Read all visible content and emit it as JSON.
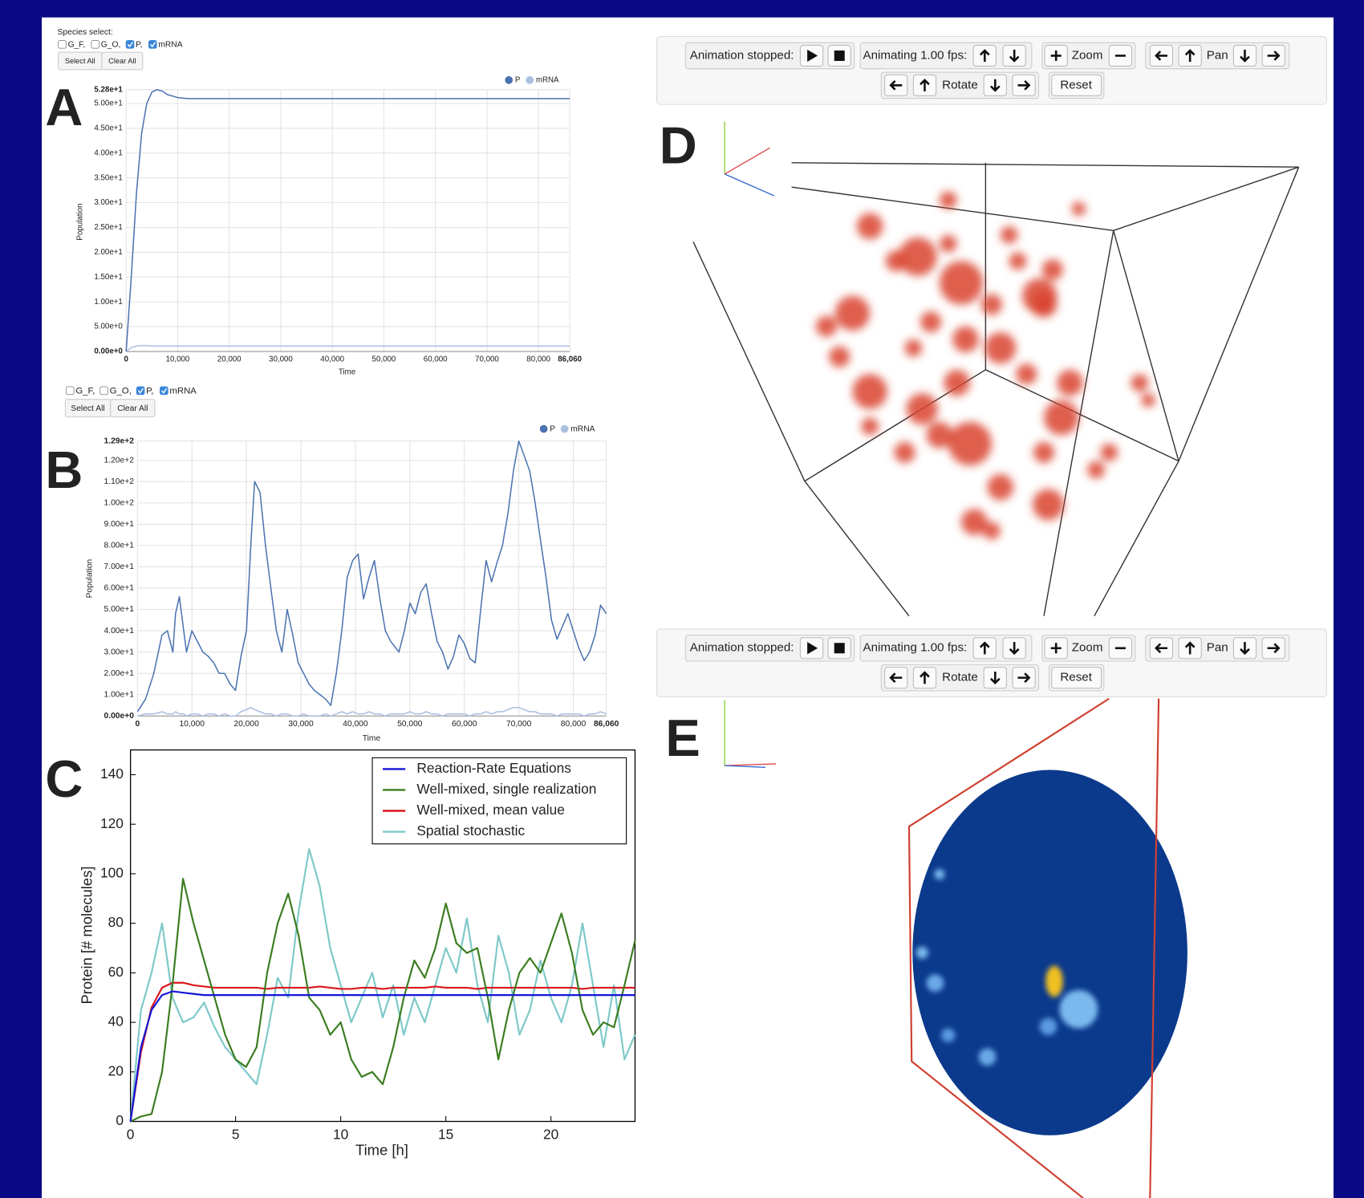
{
  "panel_labels": [
    "A",
    "B",
    "C",
    "D",
    "E"
  ],
  "species_select_a": {
    "title": "Species select:",
    "options": [
      "G_F,",
      "G_O,",
      "P,",
      "mRNA"
    ],
    "checked": [
      false,
      false,
      true,
      true
    ],
    "buttons": [
      "Select All",
      "Clear All"
    ]
  },
  "species_select_b": {
    "options": [
      "G_F,",
      "G_O,",
      "P,",
      "mRNA"
    ],
    "checked": [
      false,
      false,
      true,
      true
    ],
    "buttons": [
      "Select All",
      "Clear All"
    ]
  },
  "toolbars": [
    {
      "animation_status": "Animation stopped:",
      "animating": "Animating 1.00 fps:",
      "zoom": "Zoom",
      "pan": "Pan",
      "rotate": "Rotate",
      "reset": "Reset"
    },
    {
      "animation_status": "Animation stopped:",
      "animating": "Animating 1.00 fps:",
      "zoom": "Zoom",
      "pan": "Pan",
      "rotate": "Rotate",
      "reset": "Reset"
    }
  ],
  "chart_data": [
    {
      "type": "line",
      "xlabel": "Time",
      "ylabel": "Population",
      "grid": true,
      "legend": "top-right",
      "x": [
        0,
        1000,
        2000,
        3000,
        4000,
        5000,
        6000,
        7000,
        8000,
        10000,
        12000,
        15000,
        20000,
        30000,
        40000,
        50000,
        60000,
        70000,
        80000,
        86060
      ],
      "series": [
        {
          "name": "P",
          "color": "#4a72b0",
          "values": [
            0,
            15,
            32,
            44,
            50,
            52.3,
            52.8,
            52.5,
            51.8,
            51.2,
            51,
            51,
            51,
            51,
            51,
            51,
            51,
            51,
            51,
            51
          ]
        },
        {
          "name": "mRNA",
          "color": "#aabfe0",
          "values": [
            0,
            0.8,
            1.1,
            1.2,
            1.2,
            1.1,
            1.1,
            1.1,
            1.1,
            1.1,
            1.1,
            1.1,
            1.1,
            1.1,
            1.1,
            1.1,
            1.1,
            1.1,
            1.1,
            1.1
          ]
        }
      ],
      "xlim": [
        0,
        86060
      ],
      "xticks": [
        0,
        {
          "value": 10000,
          "label": "10,000"
        },
        {
          "value": 20000,
          "label": "20,000"
        },
        {
          "value": 30000,
          "label": "30,000"
        },
        {
          "value": 40000,
          "label": "40,000"
        },
        {
          "value": 50000,
          "label": "50,000"
        },
        {
          "value": 60000,
          "label": "60,000"
        },
        {
          "value": 70000,
          "label": "70,000"
        },
        {
          "value": 80000,
          "label": "80,000"
        },
        {
          "value": 86060,
          "label": "86,060"
        }
      ],
      "ylim": [
        0,
        52.8
      ],
      "yticks": [
        {
          "value": 0,
          "label": "0.00e+0"
        },
        {
          "value": 5,
          "label": "5.00e+0"
        },
        {
          "value": 10,
          "label": "1.00e+1"
        },
        {
          "value": 15,
          "label": "1.50e+1"
        },
        {
          "value": 20,
          "label": "2.00e+1"
        },
        {
          "value": 25,
          "label": "2.50e+1"
        },
        {
          "value": 30,
          "label": "3.00e+1"
        },
        {
          "value": 35,
          "label": "3.50e+1"
        },
        {
          "value": 40,
          "label": "4.00e+1"
        },
        {
          "value": 45,
          "label": "4.50e+1"
        },
        {
          "value": 50,
          "label": "5.00e+1"
        },
        {
          "value": 52.8,
          "label": "5.28e+1"
        }
      ]
    },
    {
      "type": "line",
      "xlabel": "Time",
      "ylabel": "Population",
      "grid": true,
      "legend": "top-right",
      "x": [
        0,
        1500,
        3000,
        4500,
        5500,
        6500,
        7000,
        7700,
        8500,
        9000,
        10000,
        11000,
        12000,
        13000,
        14000,
        15000,
        16000,
        17000,
        18000,
        19000,
        20000,
        20800,
        21500,
        22500,
        23500,
        24500,
        25500,
        26500,
        27500,
        28500,
        29500,
        30500,
        31500,
        32500,
        33500,
        34500,
        35500,
        36500,
        37500,
        38500,
        39500,
        40500,
        41500,
        42500,
        43500,
        44500,
        45500,
        46500,
        48000,
        49000,
        50000,
        51000,
        52000,
        53000,
        54000,
        55000,
        56000,
        57000,
        58000,
        59000,
        60000,
        61000,
        62000,
        63000,
        64000,
        65000,
        66000,
        67000,
        68000,
        69000,
        70000,
        71000,
        72000,
        73000,
        74000,
        75000,
        76000,
        77000,
        78000,
        79000,
        80000,
        81000,
        82000,
        83000,
        84000,
        85000,
        86060
      ],
      "series": [
        {
          "name": "P",
          "color": "#4a72b0",
          "values": [
            2,
            8,
            20,
            38,
            40,
            30,
            48,
            56,
            40,
            30,
            40,
            35,
            30,
            28,
            25,
            20,
            20,
            15,
            12,
            28,
            40,
            80,
            110,
            105,
            80,
            60,
            40,
            30,
            50,
            38,
            25,
            20,
            15,
            12,
            10,
            8,
            5,
            20,
            40,
            65,
            73,
            76,
            55,
            65,
            73,
            55,
            40,
            35,
            30,
            40,
            53,
            48,
            58,
            62,
            48,
            35,
            30,
            22,
            28,
            38,
            34,
            27,
            25,
            50,
            73,
            63,
            72,
            80,
            95,
            115,
            129,
            122,
            115,
            100,
            82,
            65,
            45,
            36,
            42,
            48,
            40,
            32,
            26,
            30,
            38,
            52,
            48
          ]
        },
        {
          "name": "mRNA",
          "color": "#aabfe0",
          "values": [
            0,
            1,
            1,
            2,
            1,
            1,
            2,
            1,
            1,
            0,
            1,
            1,
            0,
            1,
            1,
            0,
            1,
            0,
            0,
            2,
            3,
            4,
            3,
            2,
            1,
            1,
            0,
            1,
            1,
            0,
            0,
            1,
            0,
            0,
            0,
            1,
            0,
            1,
            2,
            1,
            2,
            1,
            1,
            2,
            1,
            1,
            0,
            1,
            1,
            1,
            2,
            1,
            1,
            2,
            1,
            1,
            0,
            1,
            1,
            1,
            1,
            0,
            1,
            1,
            2,
            1,
            2,
            2,
            3,
            4,
            4,
            3,
            2,
            2,
            1,
            1,
            1,
            0,
            1,
            1,
            1,
            1,
            0,
            1,
            1,
            2,
            1
          ]
        }
      ],
      "xlim": [
        0,
        86060
      ],
      "xticks": [
        0,
        {
          "value": 10000,
          "label": "10,000"
        },
        {
          "value": 20000,
          "label": "20,000"
        },
        {
          "value": 30000,
          "label": "30,000"
        },
        {
          "value": 40000,
          "label": "40,000"
        },
        {
          "value": 50000,
          "label": "50,000"
        },
        {
          "value": 60000,
          "label": "60,000"
        },
        {
          "value": 70000,
          "label": "70,000"
        },
        {
          "value": 80000,
          "label": "80,000"
        },
        {
          "value": 86060,
          "label": "86,060"
        }
      ],
      "ylim": [
        0,
        129
      ],
      "yticks": [
        {
          "value": 0,
          "label": "0.00e+0"
        },
        {
          "value": 10,
          "label": "1.00e+1"
        },
        {
          "value": 20,
          "label": "2.00e+1"
        },
        {
          "value": 30,
          "label": "3.00e+1"
        },
        {
          "value": 40,
          "label": "4.00e+1"
        },
        {
          "value": 50,
          "label": "5.00e+1"
        },
        {
          "value": 60,
          "label": "6.00e+1"
        },
        {
          "value": 70,
          "label": "7.00e+1"
        },
        {
          "value": 80,
          "label": "8.00e+1"
        },
        {
          "value": 90,
          "label": "9.00e+1"
        },
        {
          "value": 100,
          "label": "1.00e+2"
        },
        {
          "value": 110,
          "label": "1.10e+2"
        },
        {
          "value": 120,
          "label": "1.20e+2"
        },
        {
          "value": 129,
          "label": "1.29e+2"
        }
      ]
    },
    {
      "type": "line",
      "xlabel": "Time [h]",
      "ylabel": "Protein [# molecules]",
      "grid": false,
      "legend": "top-right",
      "x": [
        0,
        0.5,
        1,
        1.5,
        2,
        2.5,
        3,
        3.5,
        4,
        4.5,
        5,
        5.5,
        6,
        6.5,
        7,
        7.5,
        8,
        8.5,
        9,
        9.5,
        10,
        10.5,
        11,
        11.5,
        12,
        12.5,
        13,
        13.5,
        14,
        14.5,
        15,
        15.5,
        16,
        16.5,
        17,
        17.5,
        18,
        18.5,
        19,
        19.5,
        20,
        20.5,
        21,
        21.5,
        22,
        22.5,
        23,
        23.5,
        24
      ],
      "series": [
        {
          "name": "Reaction-Rate Equations",
          "color": "#1515d6",
          "values": [
            0,
            30,
            45,
            51,
            52.5,
            52,
            51.5,
            51,
            51,
            51,
            51,
            51,
            51,
            51,
            51,
            51,
            51,
            51,
            51,
            51,
            51,
            51,
            51,
            51,
            51,
            51,
            51,
            51,
            51,
            51,
            51,
            51,
            51,
            51,
            51,
            51,
            51,
            51,
            51,
            51,
            51,
            51,
            51,
            51,
            51,
            51,
            51,
            51,
            51
          ]
        },
        {
          "name": "Well-mixed, single realization",
          "color": "#3a7d1f",
          "values": [
            0,
            2,
            3,
            20,
            55,
            98,
            80,
            65,
            50,
            35,
            25,
            22,
            30,
            60,
            80,
            92,
            75,
            50,
            45,
            35,
            40,
            25,
            18,
            20,
            15,
            30,
            50,
            65,
            58,
            70,
            88,
            72,
            68,
            70,
            50,
            25,
            45,
            60,
            66,
            60,
            72,
            84,
            68,
            45,
            35,
            40,
            38,
            55,
            73
          ]
        },
        {
          "name": "Well-mixed, mean value",
          "color": "#d9171c",
          "values": [
            0,
            28,
            46,
            54,
            56,
            56,
            55,
            54.5,
            54,
            54,
            54,
            54,
            54,
            53.5,
            54,
            54,
            54,
            54,
            54.5,
            54,
            53.5,
            53.5,
            54,
            54,
            53.5,
            54,
            54,
            54,
            54,
            54.5,
            54,
            54,
            54,
            53.5,
            54,
            54,
            54,
            54,
            54,
            54,
            54,
            54,
            54,
            53.5,
            54,
            54,
            54,
            54,
            54
          ]
        },
        {
          "name": "Spatial stochastic",
          "color": "#7ec8c8",
          "values": [
            0,
            45,
            60,
            80,
            50,
            40,
            42,
            48,
            38,
            30,
            25,
            20,
            15,
            35,
            58,
            50,
            85,
            110,
            95,
            70,
            55,
            40,
            50,
            60,
            42,
            55,
            35,
            50,
            40,
            55,
            70,
            60,
            82,
            55,
            40,
            75,
            60,
            35,
            45,
            65,
            50,
            40,
            55,
            80,
            55,
            30,
            55,
            25,
            35
          ]
        }
      ],
      "xlim": [
        0,
        24
      ],
      "xticks": [
        0,
        5,
        10,
        15,
        20
      ],
      "ylim": [
        0,
        150
      ],
      "yticks": [
        0,
        20,
        40,
        60,
        80,
        100,
        120,
        140
      ]
    }
  ]
}
